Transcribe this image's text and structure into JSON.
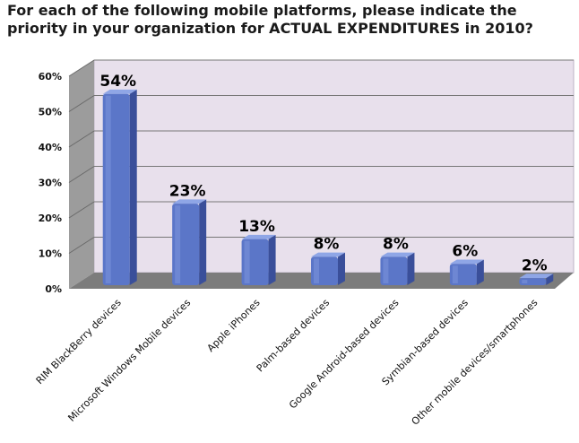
{
  "chart_data": {
    "type": "bar",
    "title": "For each of the following mobile platforms, please indicate the priority in your organization for ACTUAL EXPENDITURES in 2010?",
    "categories": [
      "RIM BlackBerry devices",
      "Microsoft Windows Mobile devices",
      "Apple iPhones",
      "Palm-based devices",
      "Google Android-based devices",
      "Symbian-based devices",
      "Other mobile devices/smartphones"
    ],
    "values": [
      54,
      23,
      13,
      8,
      8,
      6,
      2
    ],
    "data_labels": [
      "54%",
      "23%",
      "13%",
      "8%",
      "8%",
      "6%",
      "2%"
    ],
    "yticks": [
      "0%",
      "10%",
      "20%",
      "30%",
      "40%",
      "50%",
      "60%"
    ],
    "ylim": [
      0,
      60
    ],
    "grid": true,
    "style": "3d",
    "colors": {
      "bar": "#5b76c8",
      "bar_dark": "#3a4f9a",
      "bar_light": "#8fa6e6",
      "wall": "#e8e0ec",
      "side_wall": "#9c9c9c",
      "floor": "#7c7c7c",
      "gridline": "#777777"
    }
  }
}
